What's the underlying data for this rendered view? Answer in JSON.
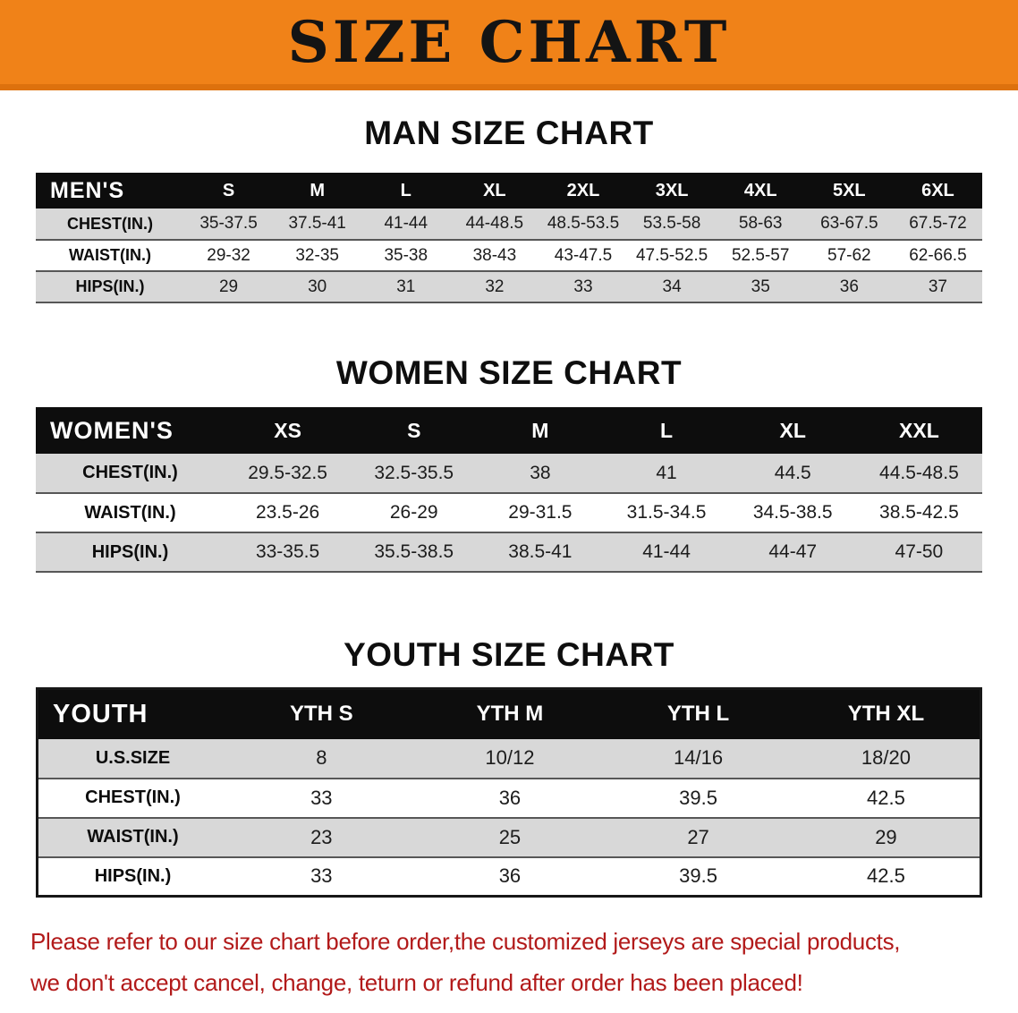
{
  "banner": {
    "title": "SIZE CHART"
  },
  "colors": {
    "banner-bg": "#f08218",
    "banner-edge": "#dd710d",
    "header-bg": "#0d0d0d",
    "row-shade": "#d8d8d8",
    "footer-red": "#b21a1a"
  },
  "men": {
    "heading": "MAN SIZE CHART",
    "corner": "MEN'S",
    "columns": [
      "S",
      "M",
      "L",
      "XL",
      "2XL",
      "3XL",
      "4XL",
      "5XL",
      "6XL"
    ],
    "rows": [
      {
        "label": "CHEST(IN.)",
        "values": [
          "35-37.5",
          "37.5-41",
          "41-44",
          "44-48.5",
          "48.5-53.5",
          "53.5-58",
          "58-63",
          "63-67.5",
          "67.5-72"
        ]
      },
      {
        "label": "WAIST(IN.)",
        "values": [
          "29-32",
          "32-35",
          "35-38",
          "38-43",
          "43-47.5",
          "47.5-52.5",
          "52.5-57",
          "57-62",
          "62-66.5"
        ]
      },
      {
        "label": "HIPS(IN.)",
        "values": [
          "29",
          "30",
          "31",
          "32",
          "33",
          "34",
          "35",
          "36",
          "37"
        ]
      }
    ]
  },
  "women": {
    "heading": "WOMEN SIZE CHART",
    "corner": "WOMEN'S",
    "columns": [
      "XS",
      "S",
      "M",
      "L",
      "XL",
      "XXL"
    ],
    "rows": [
      {
        "label": "CHEST(IN.)",
        "values": [
          "29.5-32.5",
          "32.5-35.5",
          "38",
          "41",
          "44.5",
          "44.5-48.5"
        ]
      },
      {
        "label": "WAIST(IN.)",
        "values": [
          "23.5-26",
          "26-29",
          "29-31.5",
          "31.5-34.5",
          "34.5-38.5",
          "38.5-42.5"
        ]
      },
      {
        "label": "HIPS(IN.)",
        "values": [
          "33-35.5",
          "35.5-38.5",
          "38.5-41",
          "41-44",
          "44-47",
          "47-50"
        ]
      }
    ]
  },
  "youth": {
    "heading": "YOUTH SIZE CHART",
    "corner": "YOUTH",
    "columns": [
      "YTH S",
      "YTH M",
      "YTH L",
      "YTH XL"
    ],
    "rows": [
      {
        "label": "U.S.SIZE",
        "values": [
          "8",
          "10/12",
          "14/16",
          "18/20"
        ]
      },
      {
        "label": "CHEST(IN.)",
        "values": [
          "33",
          "36",
          "39.5",
          "42.5"
        ]
      },
      {
        "label": "WAIST(IN.)",
        "values": [
          "23",
          "25",
          "27",
          "29"
        ]
      },
      {
        "label": "HIPS(IN.)",
        "values": [
          "33",
          "36",
          "39.5",
          "42.5"
        ]
      }
    ]
  },
  "footer": {
    "line1": "Please refer to our size chart before order,the customized jerseys are special products,",
    "line2": "we don't accept cancel, change, teturn or refund after order has been placed!"
  }
}
